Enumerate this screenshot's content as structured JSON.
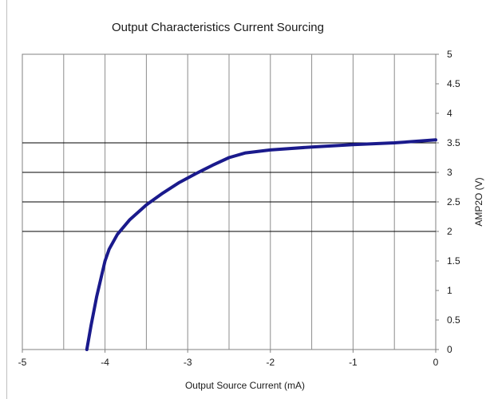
{
  "chart_data": {
    "type": "line",
    "title": "Output Characteristics  Current Sourcing",
    "xlabel": "Output  Source Current (mA)",
    "ylabel": "AMP2O (V)",
    "xlim": [
      -5,
      0
    ],
    "ylim": [
      0,
      5
    ],
    "x_ticks": [
      "-5",
      "-4",
      "-3",
      "-2",
      "-1",
      "0"
    ],
    "y_ticks": [
      "0",
      "0.5",
      "1",
      "1.5",
      "2",
      "2.5",
      "3",
      "3.5",
      "4",
      "4.5",
      "5"
    ],
    "y_axis_side": "right",
    "grid": {
      "vertical_every": 0.5,
      "horizontal_major": [
        2,
        2.5,
        3,
        3.5
      ]
    },
    "line_color": "#1a1a8c",
    "series": [
      {
        "x": [
          -4.22,
          -4.17,
          -4.1,
          -4.05,
          -4.0,
          -3.95,
          -3.85,
          -3.7,
          -3.5,
          -3.3,
          -3.1,
          -2.9,
          -2.7,
          -2.5,
          -2.3,
          -2.0,
          -1.5,
          -1.0,
          -0.5,
          0.0
        ],
        "y": [
          0.0,
          0.4,
          0.9,
          1.2,
          1.5,
          1.7,
          1.95,
          2.2,
          2.45,
          2.65,
          2.83,
          2.98,
          3.12,
          3.25,
          3.33,
          3.38,
          3.43,
          3.47,
          3.5,
          3.55
        ]
      }
    ]
  }
}
